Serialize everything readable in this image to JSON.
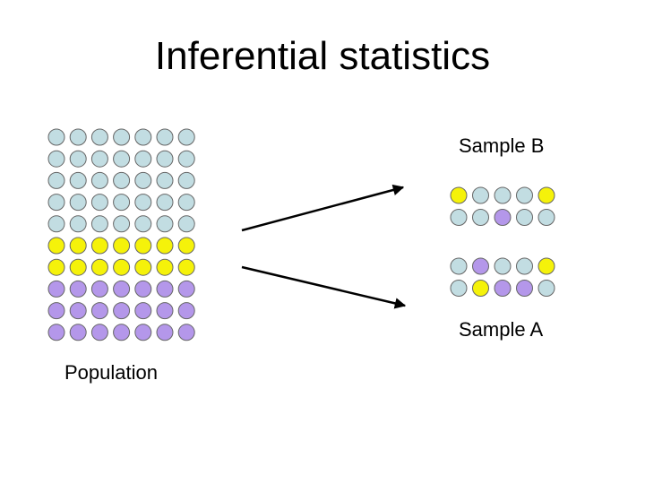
{
  "title": "Inferential statistics",
  "labels": {
    "sample_b": "Sample B",
    "sample_a": "Sample A",
    "population": "Population"
  },
  "colors": {
    "blue": "#c2dde2",
    "yellow": "#f5f20a",
    "purple": "#b497ea",
    "outline": "#666666",
    "arrow": "#000000"
  },
  "population": {
    "rows": [
      [
        "blue",
        "blue",
        "blue",
        "blue",
        "blue",
        "blue",
        "blue"
      ],
      [
        "blue",
        "blue",
        "blue",
        "blue",
        "blue",
        "blue",
        "blue"
      ],
      [
        "blue",
        "blue",
        "blue",
        "blue",
        "blue",
        "blue",
        "blue"
      ],
      [
        "blue",
        "blue",
        "blue",
        "blue",
        "blue",
        "blue",
        "blue"
      ],
      [
        "blue",
        "blue",
        "blue",
        "blue",
        "blue",
        "blue",
        "blue"
      ],
      [
        "yellow",
        "yellow",
        "yellow",
        "yellow",
        "yellow",
        "yellow",
        "yellow"
      ],
      [
        "yellow",
        "yellow",
        "yellow",
        "yellow",
        "yellow",
        "yellow",
        "yellow"
      ],
      [
        "purple",
        "purple",
        "purple",
        "purple",
        "purple",
        "purple",
        "purple"
      ],
      [
        "purple",
        "purple",
        "purple",
        "purple",
        "purple",
        "purple",
        "purple"
      ],
      [
        "purple",
        "purple",
        "purple",
        "purple",
        "purple",
        "purple",
        "purple"
      ]
    ]
  },
  "sample_b": {
    "rows": [
      [
        "yellow",
        "blue",
        "blue",
        "blue",
        "yellow"
      ],
      [
        "blue",
        "blue",
        "purple",
        "blue",
        "blue"
      ]
    ]
  },
  "sample_a": {
    "rows": [
      [
        "blue",
        "purple",
        "blue",
        "blue",
        "yellow"
      ],
      [
        "blue",
        "yellow",
        "purple",
        "purple",
        "blue"
      ]
    ]
  }
}
